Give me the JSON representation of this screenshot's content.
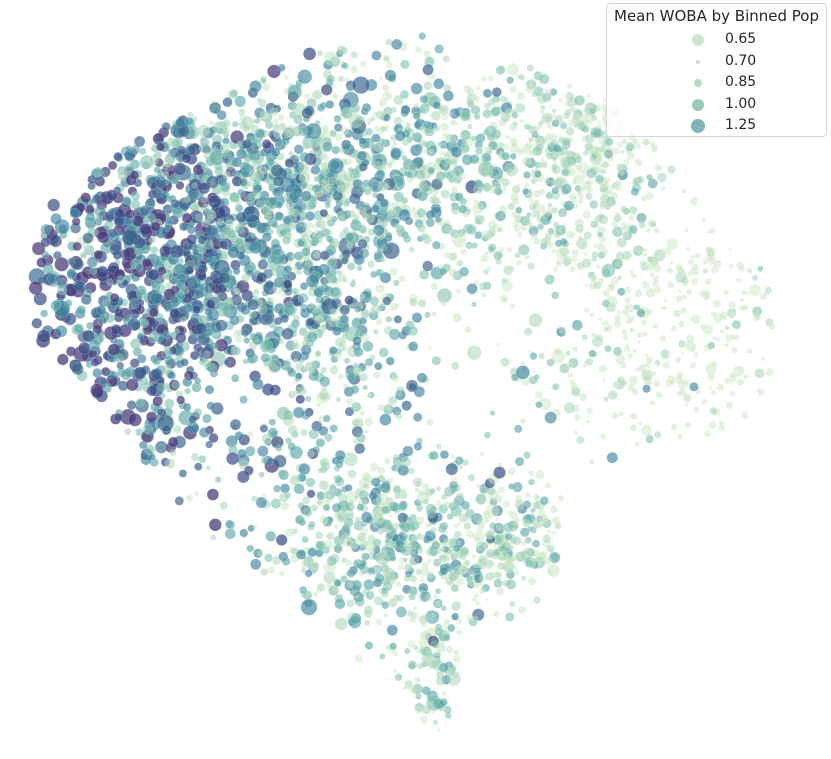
{
  "chart_data": {
    "type": "scatter",
    "title": "",
    "xlabel": "",
    "ylabel": "",
    "axes_visible": false,
    "grid": false,
    "legend": {
      "title": "Mean WOBA by Binned Pop",
      "placement": "top-right",
      "entries": [
        {
          "label": "0.65",
          "color": "#c6e2c4",
          "size_rank": 3
        },
        {
          "label": "0.70",
          "color": "#bcddbf",
          "size_rank": 1
        },
        {
          "label": "0.85",
          "color": "#a9d3b9",
          "size_rank": 2
        },
        {
          "label": "1.00",
          "color": "#86c0b2",
          "size_rank": 3
        },
        {
          "label": "1.25",
          "color": "#6aa7ad",
          "size_rank": 4
        }
      ]
    },
    "palette": [
      "#c7e5be",
      "#a7d5b7",
      "#7cbfae",
      "#56a3a6",
      "#3f849f",
      "#39648e",
      "#3c4d86",
      "#4a3c7c"
    ],
    "clusters": [
      {
        "region": "upper-left dense mass",
        "density": "high",
        "mean_level": "high"
      },
      {
        "region": "upper-middle band",
        "density": "high",
        "mean_level": "medium"
      },
      {
        "region": "right lobe",
        "density": "medium",
        "mean_level": "low"
      },
      {
        "region": "lower-middle cluster",
        "density": "high",
        "mean_level": "medium"
      },
      {
        "region": "bottom tail",
        "density": "low",
        "mean_level": "medium"
      }
    ]
  }
}
